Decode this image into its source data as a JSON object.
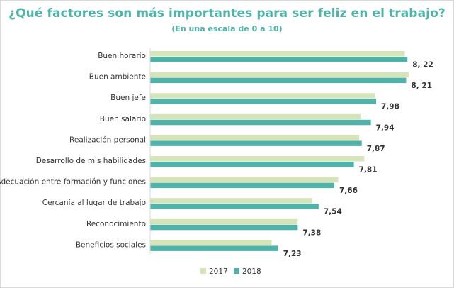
{
  "chart_data": {
    "type": "bar",
    "orientation": "horizontal",
    "title": "¿Qué factores son más importantes para ser feliz en el trabajo?",
    "subtitle": "(En una escala de 0 a 10)",
    "categories": [
      "Buen horario",
      "Buen ambiente",
      "Buen jefe",
      "Buen salario",
      "Realización personal",
      "Desarrollo de mis habilidades",
      "Adecuación entre formación y funciones",
      "Cercanía al lugar de trabajo",
      "Reconocimiento",
      "Beneficios sociales"
    ],
    "series": [
      {
        "name": "2017",
        "color": "#d6e5b9",
        "values": [
          8.2,
          8.23,
          7.97,
          7.86,
          7.85,
          7.89,
          7.69,
          7.49,
          7.38,
          7.18
        ]
      },
      {
        "name": "2018",
        "color": "#4fb3a9",
        "values": [
          8.22,
          8.21,
          7.98,
          7.94,
          7.87,
          7.81,
          7.66,
          7.54,
          7.38,
          7.23
        ]
      }
    ],
    "data_labels": [
      "8, 22",
      "8, 21",
      "7,98",
      "7,94",
      "7,87",
      "7,81",
      "7,66",
      "7,54",
      "7,38",
      "7,23"
    ],
    "data_labels_series": "2018",
    "xlim": [
      6.25,
      8.3
    ],
    "grid": false,
    "legend_position": "bottom-center"
  }
}
